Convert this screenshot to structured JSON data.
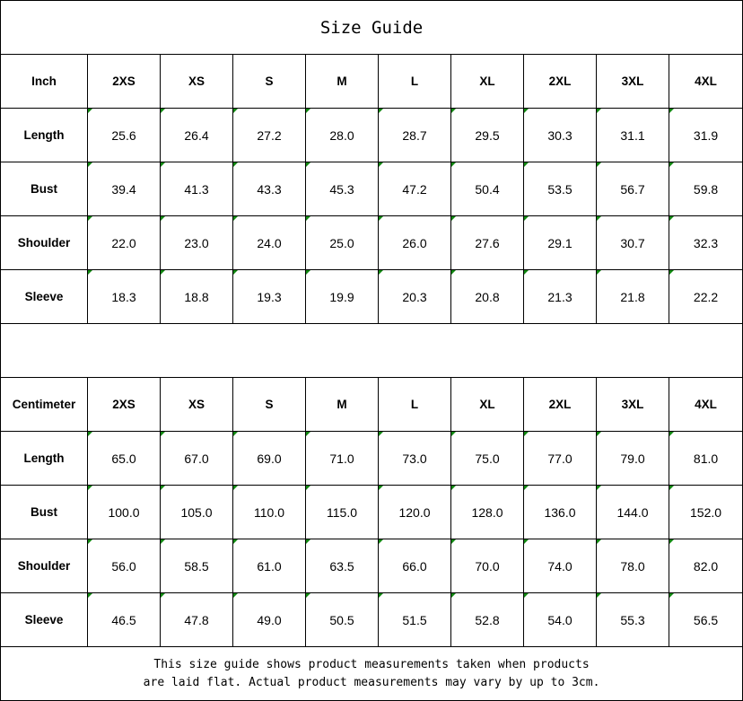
{
  "title": "Size Guide",
  "sizes": [
    "2XS",
    "XS",
    "S",
    "M",
    "L",
    "XL",
    "2XL",
    "3XL",
    "4XL"
  ],
  "inch": {
    "label": "Inch",
    "rows": [
      {
        "name": "Length",
        "values": [
          "25.6",
          "26.4",
          "27.2",
          "28.0",
          "28.7",
          "29.5",
          "30.3",
          "31.1",
          "31.9"
        ]
      },
      {
        "name": "Bust",
        "values": [
          "39.4",
          "41.3",
          "43.3",
          "45.3",
          "47.2",
          "50.4",
          "53.5",
          "56.7",
          "59.8"
        ]
      },
      {
        "name": "Shoulder",
        "values": [
          "22.0",
          "23.0",
          "24.0",
          "25.0",
          "26.0",
          "27.6",
          "29.1",
          "30.7",
          "32.3"
        ]
      },
      {
        "name": "Sleeve",
        "values": [
          "18.3",
          "18.8",
          "19.3",
          "19.9",
          "20.3",
          "20.8",
          "21.3",
          "21.8",
          "22.2"
        ]
      }
    ]
  },
  "cm": {
    "label": "Centimeter",
    "rows": [
      {
        "name": "Length",
        "values": [
          "65.0",
          "67.0",
          "69.0",
          "71.0",
          "73.0",
          "75.0",
          "77.0",
          "79.0",
          "81.0"
        ]
      },
      {
        "name": "Bust",
        "values": [
          "100.0",
          "105.0",
          "110.0",
          "115.0",
          "120.0",
          "128.0",
          "136.0",
          "144.0",
          "152.0"
        ]
      },
      {
        "name": "Shoulder",
        "values": [
          "56.0",
          "58.5",
          "61.0",
          "63.5",
          "66.0",
          "70.0",
          "74.0",
          "78.0",
          "82.0"
        ]
      },
      {
        "name": "Sleeve",
        "values": [
          "46.5",
          "47.8",
          "49.0",
          "50.5",
          "51.5",
          "52.8",
          "54.0",
          "55.3",
          "56.5"
        ]
      }
    ]
  },
  "note": {
    "line1": "This size guide shows product measurements taken when products",
    "line2": "are laid flat. Actual product measurements may vary by up to 3cm."
  }
}
